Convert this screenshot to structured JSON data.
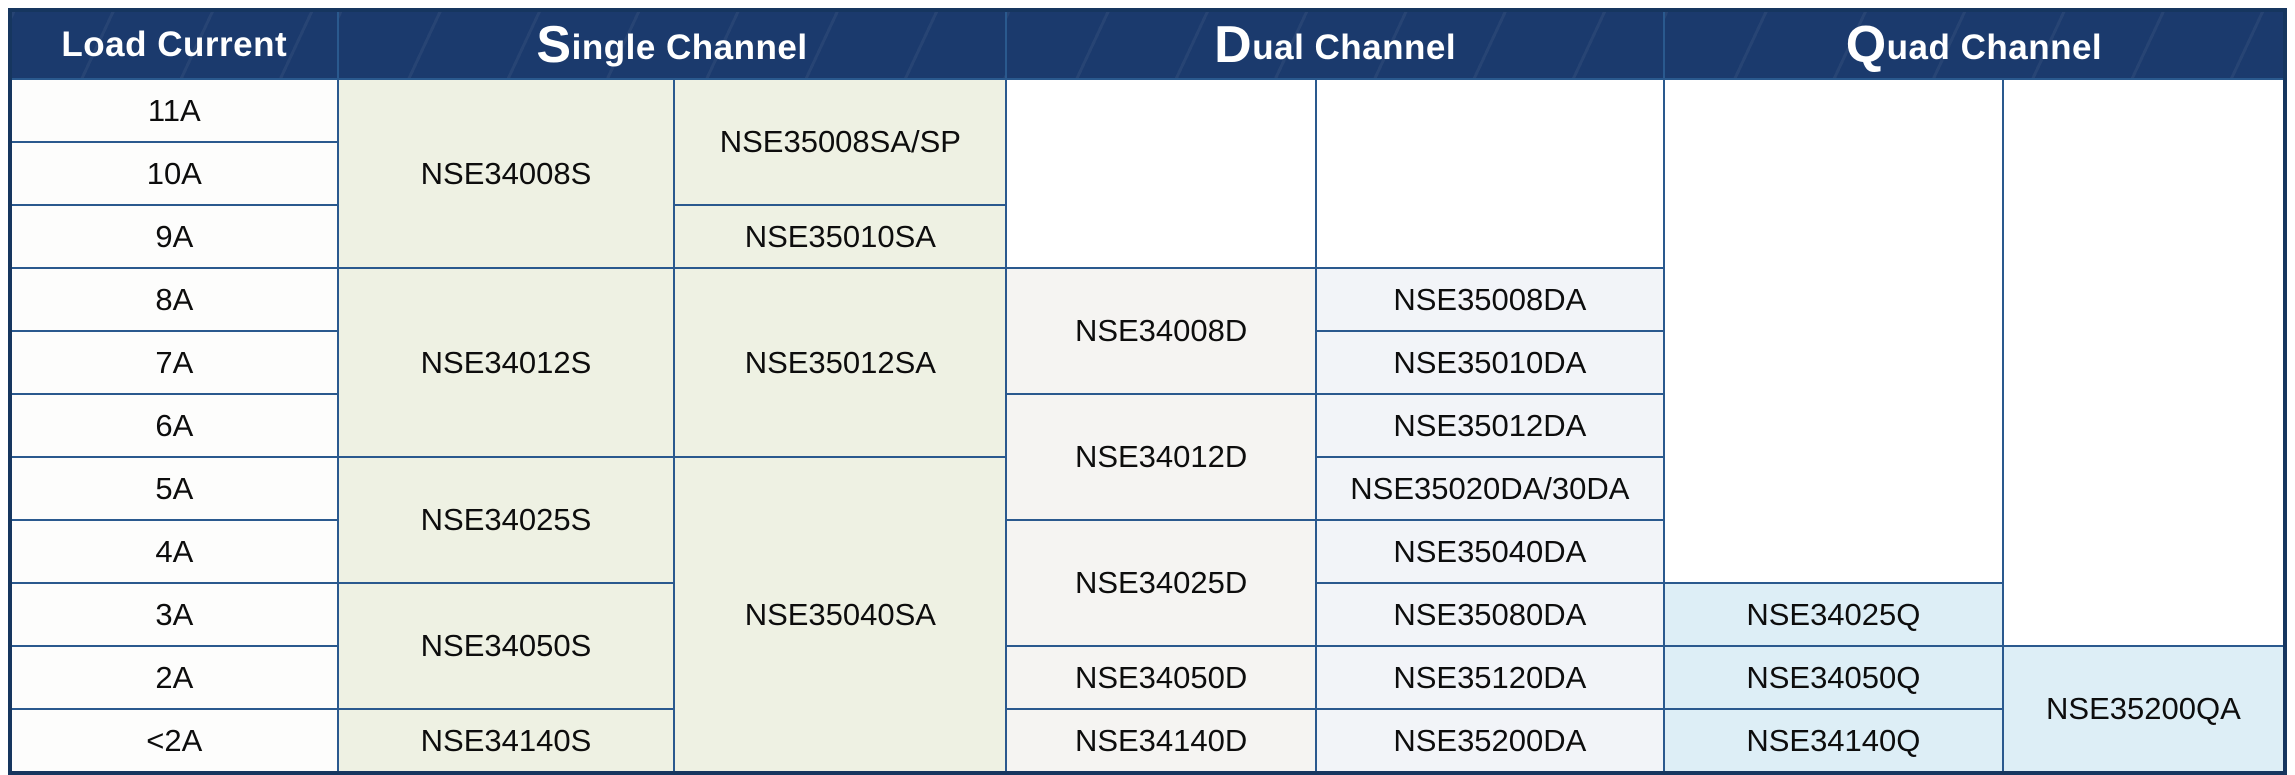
{
  "title": "Load current product selector table",
  "colors": {
    "header_bg": "#1b3a6d",
    "border_color": "#2a598e",
    "single_bg": "#eef1e3",
    "dual_a_bg": "#f5f4f2",
    "dual_b_bg": "#f2f4f8",
    "quad_bg": "#ddeef6",
    "empty_bg": "#ffffff",
    "header_text": "#ffffff"
  },
  "headers": {
    "load_current": "Load Current",
    "single": {
      "initial": "S",
      "rest": "ingle Channel"
    },
    "dual": {
      "initial": "D",
      "rest": "ual Channel"
    },
    "quad": {
      "initial": "Q",
      "rest": "uad Channel"
    }
  },
  "load_currents": [
    "11A",
    "10A",
    "9A",
    "8A",
    "7A",
    "6A",
    "5A",
    "4A",
    "3A",
    "2A",
    "<2A"
  ],
  "products": {
    "single_a": [
      "NSE34008S",
      "NSE34012S",
      "NSE34025S",
      "NSE34050S",
      "NSE34140S"
    ],
    "single_b": [
      "NSE35008SA/SP",
      "NSE35010SA",
      "NSE35012SA",
      "NSE35040SA"
    ],
    "dual_a": [
      "NSE34008D",
      "NSE34012D",
      "NSE34025D",
      "NSE34050D",
      "NSE34140D"
    ],
    "dual_b": [
      "NSE35008DA",
      "NSE35010DA",
      "NSE35012DA",
      "NSE35020DA/30DA",
      "NSE35040DA",
      "NSE35080DA",
      "NSE35120DA",
      "NSE35200DA"
    ],
    "quad_a": [
      "NSE34025Q",
      "NSE34050Q",
      "NSE34140Q"
    ],
    "quad_b": [
      "NSE35200QA"
    ]
  },
  "chart_data": {
    "type": "table",
    "title": "Load Current vs Channel Count product matrix",
    "row_header": "Load Current",
    "rows": [
      "11A",
      "10A",
      "9A",
      "8A",
      "7A",
      "6A",
      "5A",
      "4A",
      "3A",
      "2A",
      "<2A"
    ],
    "column_groups": [
      "Single Channel",
      "Dual Channel",
      "Quad Channel"
    ],
    "assignments": {
      "single_channel": [
        {
          "part": "NSE34008S",
          "rows": [
            "11A",
            "10A",
            "9A"
          ]
        },
        {
          "part": "NSE35008SA/SP",
          "rows": [
            "11A",
            "10A"
          ]
        },
        {
          "part": "NSE35010SA",
          "rows": [
            "9A"
          ]
        },
        {
          "part": "NSE34012S",
          "rows": [
            "8A",
            "7A",
            "6A"
          ]
        },
        {
          "part": "NSE35012SA",
          "rows": [
            "8A",
            "7A",
            "6A"
          ]
        },
        {
          "part": "NSE34025S",
          "rows": [
            "5A",
            "4A"
          ]
        },
        {
          "part": "NSE35040SA",
          "rows": [
            "5A",
            "4A",
            "3A",
            "2A",
            "<2A"
          ]
        },
        {
          "part": "NSE34050S",
          "rows": [
            "3A",
            "2A"
          ]
        },
        {
          "part": "NSE34140S",
          "rows": [
            "<2A"
          ]
        }
      ],
      "dual_channel": [
        {
          "part": "NSE34008D",
          "rows": [
            "8A",
            "7A"
          ]
        },
        {
          "part": "NSE35008DA",
          "rows": [
            "8A"
          ]
        },
        {
          "part": "NSE35010DA",
          "rows": [
            "7A"
          ]
        },
        {
          "part": "NSE34012D",
          "rows": [
            "6A",
            "5A"
          ]
        },
        {
          "part": "NSE35012DA",
          "rows": [
            "6A"
          ]
        },
        {
          "part": "NSE35020DA/30DA",
          "rows": [
            "5A"
          ]
        },
        {
          "part": "NSE34025D",
          "rows": [
            "4A",
            "3A"
          ]
        },
        {
          "part": "NSE35040DA",
          "rows": [
            "4A"
          ]
        },
        {
          "part": "NSE35080DA",
          "rows": [
            "3A"
          ]
        },
        {
          "part": "NSE34050D",
          "rows": [
            "2A"
          ]
        },
        {
          "part": "NSE35120DA",
          "rows": [
            "2A"
          ]
        },
        {
          "part": "NSE34140D",
          "rows": [
            "<2A"
          ]
        },
        {
          "part": "NSE35200DA",
          "rows": [
            "<2A"
          ]
        }
      ],
      "quad_channel": [
        {
          "part": "NSE34025Q",
          "rows": [
            "3A"
          ]
        },
        {
          "part": "NSE34050Q",
          "rows": [
            "2A"
          ]
        },
        {
          "part": "NSE34140Q",
          "rows": [
            "<2A"
          ]
        },
        {
          "part": "NSE35200QA",
          "rows": [
            "2A",
            "<2A"
          ]
        }
      ]
    }
  }
}
